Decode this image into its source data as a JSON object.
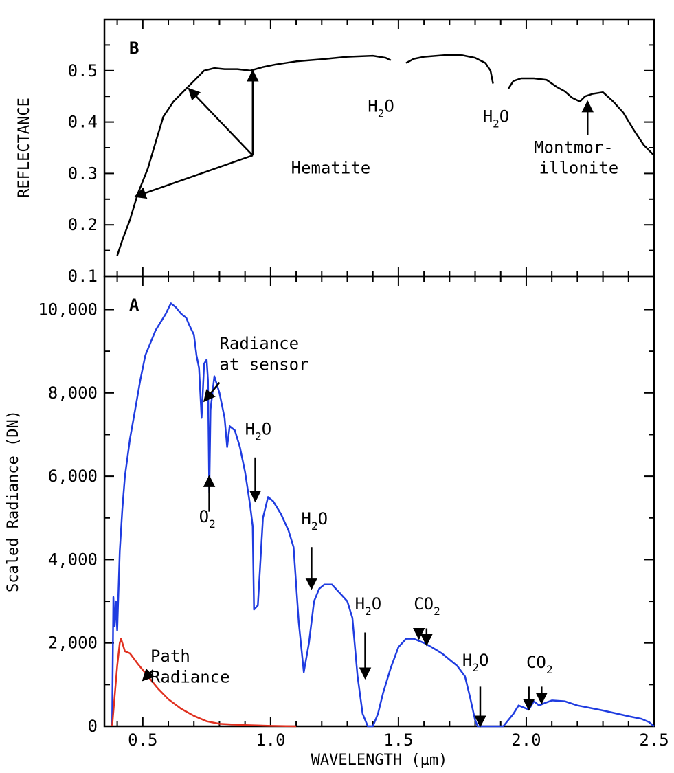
{
  "chart_data": [
    {
      "panel_id": "B",
      "type": "line",
      "panel_label": "B",
      "ylabel": "REFLECTANCE",
      "xlim": [
        0.35,
        2.5
      ],
      "ylim": [
        0.1,
        0.6
      ],
      "yticks": [
        0.1,
        0.2,
        0.3,
        0.4,
        0.5
      ],
      "ytick_labels": [
        "0.1",
        "0.2",
        "0.3",
        "0.4",
        "0.5"
      ],
      "series": [
        {
          "color": "#000000",
          "segments": [
            [
              [
                0.4,
                0.14
              ],
              [
                0.42,
                0.17
              ],
              [
                0.45,
                0.21
              ],
              [
                0.48,
                0.26
              ],
              [
                0.52,
                0.31
              ],
              [
                0.55,
                0.36
              ],
              [
                0.58,
                0.41
              ],
              [
                0.62,
                0.44
              ],
              [
                0.66,
                0.46
              ],
              [
                0.7,
                0.48
              ],
              [
                0.74,
                0.5
              ],
              [
                0.78,
                0.505
              ],
              [
                0.82,
                0.503
              ],
              [
                0.87,
                0.503
              ],
              [
                0.92,
                0.5
              ],
              [
                0.97,
                0.507
              ],
              [
                1.02,
                0.512
              ],
              [
                1.1,
                0.518
              ],
              [
                1.2,
                0.522
              ],
              [
                1.3,
                0.527
              ],
              [
                1.4,
                0.529
              ],
              [
                1.45,
                0.525
              ],
              [
                1.47,
                0.52
              ]
            ],
            [
              [
                1.53,
                0.515
              ],
              [
                1.56,
                0.523
              ],
              [
                1.6,
                0.527
              ],
              [
                1.65,
                0.529
              ],
              [
                1.7,
                0.531
              ],
              [
                1.75,
                0.53
              ],
              [
                1.8,
                0.525
              ],
              [
                1.84,
                0.515
              ],
              [
                1.86,
                0.5
              ],
              [
                1.87,
                0.475
              ]
            ],
            [
              [
                1.93,
                0.465
              ],
              [
                1.95,
                0.48
              ],
              [
                1.98,
                0.485
              ],
              [
                2.03,
                0.485
              ],
              [
                2.08,
                0.482
              ],
              [
                2.12,
                0.468
              ],
              [
                2.15,
                0.46
              ],
              [
                2.18,
                0.447
              ],
              [
                2.21,
                0.44
              ],
              [
                2.23,
                0.45
              ],
              [
                2.26,
                0.455
              ],
              [
                2.3,
                0.458
              ],
              [
                2.34,
                0.44
              ],
              [
                2.38,
                0.418
              ],
              [
                2.42,
                0.385
              ],
              [
                2.46,
                0.355
              ],
              [
                2.5,
                0.335
              ]
            ]
          ]
        }
      ],
      "annotations": [
        {
          "id": "hematite",
          "text": "Hematite",
          "x": 1.08,
          "y": 0.3
        },
        {
          "id": "h2o-1",
          "text": "H",
          "sub": "2",
          "tail": "O",
          "x": 1.38,
          "y": 0.42
        },
        {
          "id": "h2o-2",
          "text": "H",
          "sub": "2",
          "tail": "O",
          "x": 1.83,
          "y": 0.4
        },
        {
          "id": "montmor-1",
          "text": "Montmor-",
          "x": 2.03,
          "y": 0.34
        },
        {
          "id": "montmor-2",
          "text": "illonite",
          "x": 2.05,
          "y": 0.3
        }
      ],
      "arrows": [
        {
          "id": "hematite-arrow-1",
          "from": [
            0.93,
            0.335
          ],
          "to": [
            0.47,
            0.255
          ]
        },
        {
          "id": "hematite-arrow-2",
          "from": [
            0.93,
            0.335
          ],
          "to": [
            0.68,
            0.465
          ]
        },
        {
          "id": "hematite-arrow-3",
          "from": [
            0.93,
            0.335
          ],
          "to": [
            0.93,
            0.5
          ]
        },
        {
          "id": "montmor-arrow",
          "from": [
            2.24,
            0.375
          ],
          "to": [
            2.24,
            0.44
          ]
        }
      ]
    },
    {
      "panel_id": "A",
      "type": "line",
      "panel_label": "A",
      "xlabel": "WAVELENGTH (µm)",
      "ylabel": "Scaled Radiance (DN)",
      "xlim": [
        0.35,
        2.5
      ],
      "ylim": [
        0,
        10800
      ],
      "xticks": [
        0.5,
        1.0,
        1.5,
        2.0,
        2.5
      ],
      "xtick_labels": [
        "0.5",
        "1.0",
        "1.5",
        "2.0",
        "2.5"
      ],
      "yticks": [
        0,
        2000,
        4000,
        6000,
        8000,
        10000
      ],
      "ytick_labels": [
        "0",
        "2,000",
        "4,000",
        "6,000",
        "8,000",
        "10,000"
      ],
      "series": [
        {
          "name": "Radiance at sensor",
          "color": "#1f3ce0",
          "points": [
            [
              0.38,
              0
            ],
            [
              0.385,
              3100
            ],
            [
              0.39,
              2400
            ],
            [
              0.395,
              3000
            ],
            [
              0.4,
              2300
            ],
            [
              0.41,
              4200
            ],
            [
              0.42,
              5200
            ],
            [
              0.43,
              6000
            ],
            [
              0.45,
              6900
            ],
            [
              0.47,
              7600
            ],
            [
              0.49,
              8300
            ],
            [
              0.51,
              8900
            ],
            [
              0.53,
              9200
            ],
            [
              0.55,
              9500
            ],
            [
              0.57,
              9700
            ],
            [
              0.59,
              9900
            ],
            [
              0.61,
              10150
            ],
            [
              0.63,
              10050
            ],
            [
              0.65,
              9900
            ],
            [
              0.67,
              9800
            ],
            [
              0.68,
              9650
            ],
            [
              0.7,
              9400
            ],
            [
              0.71,
              8900
            ],
            [
              0.72,
              8600
            ],
            [
              0.73,
              7400
            ],
            [
              0.74,
              8700
            ],
            [
              0.75,
              8800
            ],
            [
              0.755,
              8300
            ],
            [
              0.76,
              5600
            ],
            [
              0.765,
              7600
            ],
            [
              0.78,
              8400
            ],
            [
              0.8,
              8000
            ],
            [
              0.82,
              7400
            ],
            [
              0.83,
              6700
            ],
            [
              0.84,
              7200
            ],
            [
              0.86,
              7100
            ],
            [
              0.88,
              6700
            ],
            [
              0.9,
              6100
            ],
            [
              0.92,
              5300
            ],
            [
              0.93,
              4800
            ],
            [
              0.935,
              2800
            ],
            [
              0.95,
              2900
            ],
            [
              0.97,
              5000
            ],
            [
              0.99,
              5500
            ],
            [
              1.01,
              5400
            ],
            [
              1.04,
              5100
            ],
            [
              1.07,
              4700
            ],
            [
              1.09,
              4300
            ],
            [
              1.11,
              2500
            ],
            [
              1.13,
              1300
            ],
            [
              1.15,
              2000
            ],
            [
              1.17,
              3000
            ],
            [
              1.19,
              3300
            ],
            [
              1.21,
              3400
            ],
            [
              1.24,
              3400
            ],
            [
              1.27,
              3200
            ],
            [
              1.3,
              3000
            ],
            [
              1.32,
              2600
            ],
            [
              1.34,
              1200
            ],
            [
              1.36,
              300
            ],
            [
              1.38,
              0
            ],
            [
              1.4,
              0
            ],
            [
              1.42,
              300
            ],
            [
              1.44,
              800
            ],
            [
              1.47,
              1400
            ],
            [
              1.5,
              1900
            ],
            [
              1.53,
              2100
            ],
            [
              1.56,
              2100
            ],
            [
              1.6,
              2000
            ],
            [
              1.63,
              1900
            ],
            [
              1.67,
              1750
            ],
            [
              1.7,
              1600
            ],
            [
              1.73,
              1450
            ],
            [
              1.76,
              1200
            ],
            [
              1.78,
              700
            ],
            [
              1.8,
              150
            ],
            [
              1.81,
              0
            ],
            [
              1.91,
              0
            ],
            [
              1.95,
              300
            ],
            [
              1.97,
              500
            ],
            [
              1.99,
              450
            ],
            [
              2.01,
              400
            ],
            [
              2.03,
              600
            ],
            [
              2.05,
              500
            ],
            [
              2.07,
              550
            ],
            [
              2.1,
              620
            ],
            [
              2.15,
              600
            ],
            [
              2.2,
              500
            ],
            [
              2.3,
              380
            ],
            [
              2.4,
              240
            ],
            [
              2.45,
              180
            ],
            [
              2.48,
              100
            ],
            [
              2.5,
              0
            ]
          ]
        },
        {
          "name": "Path Radiance",
          "color": "#e0301f",
          "points": [
            [
              0.38,
              0
            ],
            [
              0.4,
              1450
            ],
            [
              0.41,
              2000
            ],
            [
              0.415,
              2100
            ],
            [
              0.43,
              1800
            ],
            [
              0.45,
              1750
            ],
            [
              0.48,
              1500
            ],
            [
              0.52,
              1200
            ],
            [
              0.56,
              900
            ],
            [
              0.6,
              650
            ],
            [
              0.65,
              420
            ],
            [
              0.7,
              250
            ],
            [
              0.75,
              120
            ],
            [
              0.8,
              60
            ],
            [
              0.9,
              30
            ],
            [
              1.0,
              10
            ],
            [
              1.1,
              0
            ]
          ]
        }
      ],
      "annotations": [
        {
          "id": "radiance-at-sensor-1",
          "text": "Radiance",
          "x": 0.8,
          "y": 9050
        },
        {
          "id": "radiance-at-sensor-2",
          "text": "at sensor",
          "x": 0.8,
          "y": 8550
        },
        {
          "id": "path-radiance-1",
          "text": "Path",
          "x": 0.53,
          "y": 1550
        },
        {
          "id": "path-radiance-2",
          "text": "Radiance",
          "x": 0.53,
          "y": 1050
        },
        {
          "id": "o2",
          "text": "O",
          "sub": "2",
          "x": 0.72,
          "y": 4900
        },
        {
          "id": "h2o-a1",
          "text": "H",
          "sub": "2",
          "tail": "O",
          "x": 0.9,
          "y": 7000
        },
        {
          "id": "h2o-a2",
          "text": "H",
          "sub": "2",
          "tail": "O",
          "x": 1.12,
          "y": 4850
        },
        {
          "id": "h2o-a3",
          "text": "H",
          "sub": "2",
          "tail": "O",
          "x": 1.33,
          "y": 2800
        },
        {
          "id": "co2-a1",
          "text": "CO",
          "sub": "2",
          "x": 1.56,
          "y": 2800
        },
        {
          "id": "h2o-a4",
          "text": "H",
          "sub": "2",
          "tail": "O",
          "x": 1.75,
          "y": 1450
        },
        {
          "id": "co2-a2",
          "text": "CO",
          "sub": "2",
          "x": 2.0,
          "y": 1400
        }
      ],
      "arrows": [
        {
          "id": "radiance-arrow",
          "from": [
            0.8,
            8250
          ],
          "to": [
            0.74,
            7800
          ]
        },
        {
          "id": "path-arrow",
          "from": [
            0.54,
            1350
          ],
          "to": [
            0.5,
            1100
          ]
        },
        {
          "id": "o2-arrow",
          "from": [
            0.76,
            5150
          ],
          "to": [
            0.76,
            6000
          ]
        },
        {
          "id": "h2o-arrow-1",
          "from": [
            0.94,
            6450
          ],
          "to": [
            0.94,
            5400
          ]
        },
        {
          "id": "h2o-arrow-2",
          "from": [
            1.16,
            4300
          ],
          "to": [
            1.16,
            3300
          ]
        },
        {
          "id": "h2o-arrow-3",
          "from": [
            1.37,
            2250
          ],
          "to": [
            1.37,
            1150
          ]
        },
        {
          "id": "co2-arrow-1",
          "from": [
            1.58,
            2350
          ],
          "to": [
            1.58,
            2100
          ]
        },
        {
          "id": "co2-arrow-2",
          "from": [
            1.61,
            2350
          ],
          "to": [
            1.61,
            1950
          ]
        },
        {
          "id": "h2o-arrow-4",
          "from": [
            1.82,
            950
          ],
          "to": [
            1.82,
            0
          ]
        },
        {
          "id": "co2-arrow-3",
          "from": [
            2.01,
            950
          ],
          "to": [
            2.01,
            400
          ]
        },
        {
          "id": "co2-arrow-4",
          "from": [
            2.06,
            950
          ],
          "to": [
            2.06,
            550
          ]
        }
      ]
    }
  ]
}
